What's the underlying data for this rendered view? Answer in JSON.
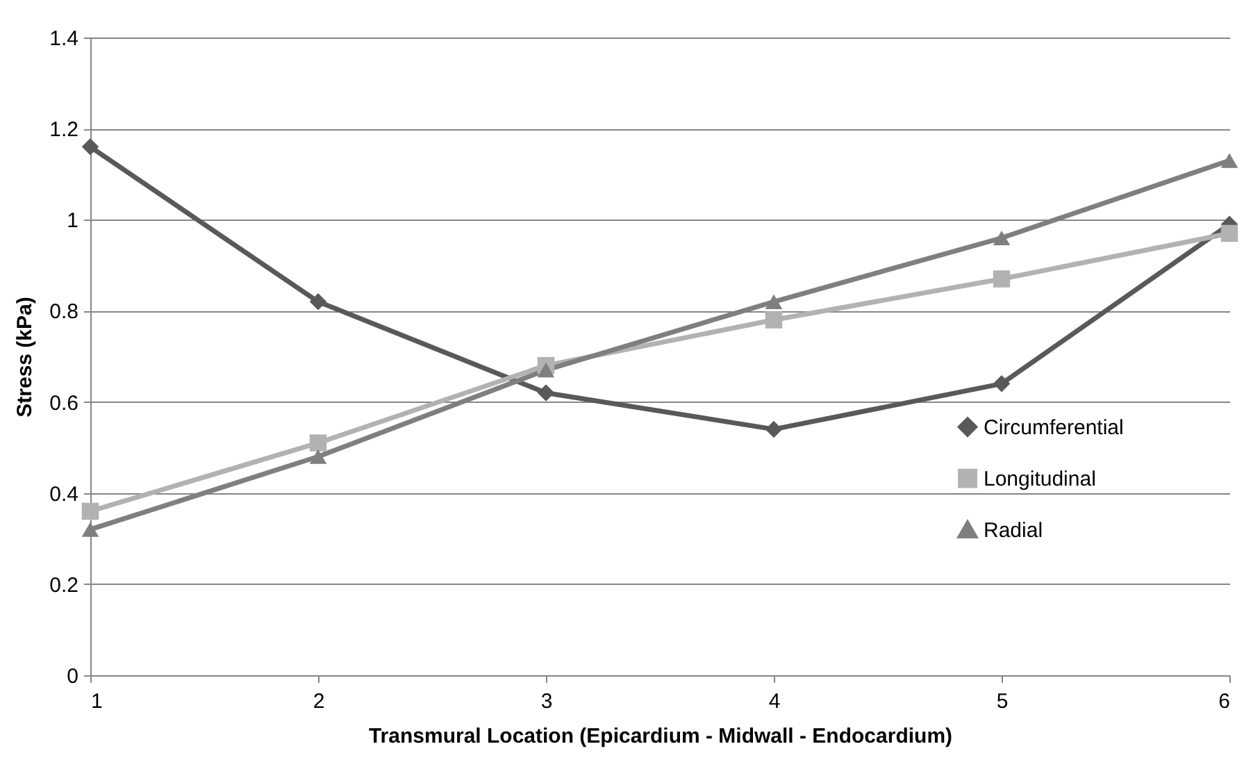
{
  "chart_data": {
    "type": "line",
    "xlabel": "Transmural Location (Epicardium - Midwall - Endocardium)",
    "ylabel": "Stress (kPa)",
    "x": [
      1,
      2,
      3,
      4,
      5,
      6
    ],
    "series": [
      {
        "name": "Circumferential",
        "color": "#595959",
        "marker": "diamond",
        "values": [
          1.16,
          0.82,
          0.62,
          0.54,
          0.64,
          0.99
        ]
      },
      {
        "name": "Longitudinal",
        "color": "#b2b2b2",
        "marker": "square",
        "values": [
          0.36,
          0.51,
          0.68,
          0.78,
          0.87,
          0.97
        ]
      },
      {
        "name": "Radial",
        "color": "#7f7f7f",
        "marker": "triangle",
        "values": [
          0.32,
          0.48,
          0.67,
          0.82,
          0.96,
          1.13
        ]
      }
    ],
    "xlim": [
      1,
      6
    ],
    "xticks": [
      1,
      2,
      3,
      4,
      5,
      6
    ],
    "ylim": [
      0,
      1.4
    ],
    "yticks": [
      0,
      0.2,
      0.4,
      0.6,
      0.8,
      1,
      1.2,
      1.4
    ],
    "grid": "y",
    "legend": "right",
    "line_style": "solid"
  }
}
